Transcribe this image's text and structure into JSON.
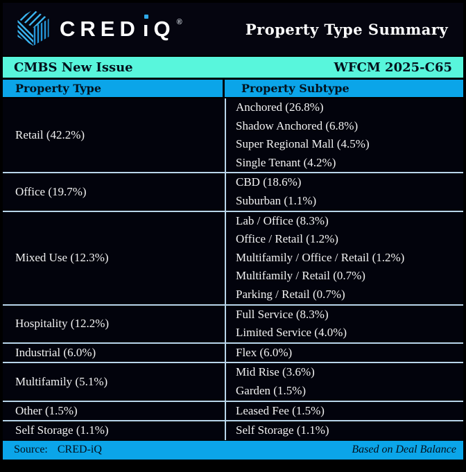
{
  "header": {
    "logo_cred": "CRED",
    "logo_i": "ı",
    "logo_q": "Q",
    "registered_mark": "®",
    "title": "Property Type Summary"
  },
  "deal_bar": {
    "left_label": "CMBS New Issue",
    "right_label": "WFCM 2025-C65"
  },
  "table": {
    "columns": {
      "type": "Property Type",
      "subtype": "Property Subtype"
    },
    "groups": [
      {
        "type": "Retail (42.2%)",
        "subtypes": [
          "Anchored (26.8%)",
          "Shadow Anchored (6.8%)",
          "Super Regional Mall (4.5%)",
          "Single Tenant (4.2%)"
        ]
      },
      {
        "type": "Office (19.7%)",
        "subtypes": [
          "CBD (18.6%)",
          "Suburban (1.1%)"
        ]
      },
      {
        "type": "Mixed Use (12.3%)",
        "subtypes": [
          "Lab / Office (8.3%)",
          "Office / Retail (1.2%)",
          "Multifamily / Office / Retail (1.2%)",
          "Multifamily / Retail (0.7%)",
          "Parking / Retail (0.7%)"
        ]
      },
      {
        "type": "Hospitality (12.2%)",
        "subtypes": [
          "Full Service (8.3%)",
          "Limited Service (4.0%)"
        ]
      },
      {
        "type": "Industrial (6.0%)",
        "subtypes": [
          "Flex (6.0%)"
        ]
      },
      {
        "type": "Multifamily (5.1%)",
        "subtypes": [
          "Mid Rise (3.6%)",
          "Garden (1.5%)"
        ]
      },
      {
        "type": "Other (1.5%)",
        "subtypes": [
          "Leased Fee (1.5%)"
        ]
      },
      {
        "type": "Self Storage (1.1%)",
        "subtypes": [
          "Self Storage (1.1%)"
        ]
      }
    ]
  },
  "footer": {
    "source_label": "Source:",
    "source_value": "CRED-iQ",
    "note": "Based on Deal Balance"
  },
  "colors": {
    "background": "#05050F",
    "teal_accent": "#58F6DC",
    "blue_accent": "#0BA5E9",
    "divider": "#B9D6EA",
    "text_light": "#F2F2F2",
    "text_dark": "#03111C",
    "logo_blue": "#2FA9E8"
  }
}
